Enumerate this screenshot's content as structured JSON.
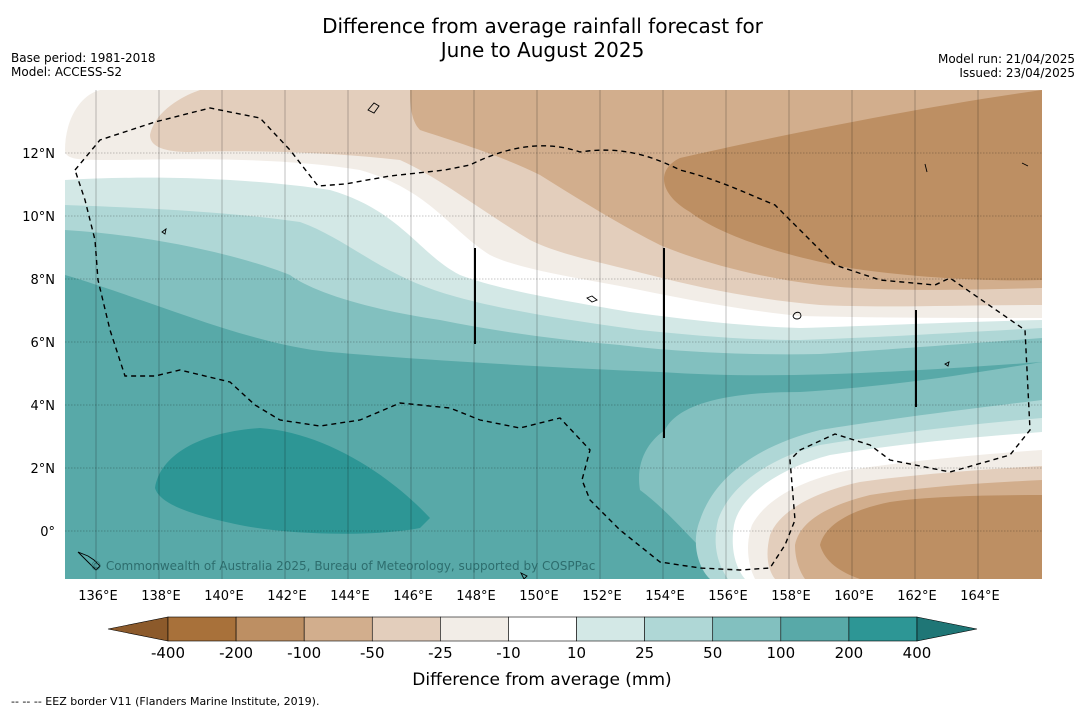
{
  "title": {
    "line1": "Difference from average rainfall forecast for",
    "line2": "June to August 2025"
  },
  "meta_left": {
    "base_period": "Base period: 1981-2018",
    "model": "Model: ACCESS-S2"
  },
  "meta_right": {
    "model_run": "Model run: 21/04/2025",
    "issued": "Issued: 23/04/2025"
  },
  "map": {
    "longitude_labels": [
      "136°E",
      "138°E",
      "140°E",
      "142°E",
      "144°E",
      "146°E",
      "148°E",
      "150°E",
      "152°E",
      "154°E",
      "156°E",
      "158°E",
      "160°E",
      "162°E",
      "164°E"
    ],
    "latitude_labels": [
      "12°N",
      "10°N",
      "8°N",
      "6°N",
      "4°N",
      "2°N",
      "0°"
    ],
    "copyright": "© Commonwealth of Australia 2025, Bureau of Meteorology, supported by COSPPac"
  },
  "legend": {
    "title": "Difference from average (mm)",
    "ticks": [
      "-400",
      "-200",
      "-100",
      "-50",
      "-25",
      "-10",
      "10",
      "25",
      "50",
      "100",
      "200",
      "400"
    ],
    "colors": [
      "#a8713a",
      "#bd8f63",
      "#d2ae8d",
      "#e3cebc",
      "#f2ede7",
      "#ffffff",
      "#d3e8e6",
      "#afd7d6",
      "#82c0bf",
      "#58a9a8",
      "#2d9695"
    ],
    "under_color": "#8c5a2b",
    "over_color": "#1f7676"
  },
  "footnote": "--  --  -- EEZ border V11 (Flanders Marine Institute, 2019)."
}
